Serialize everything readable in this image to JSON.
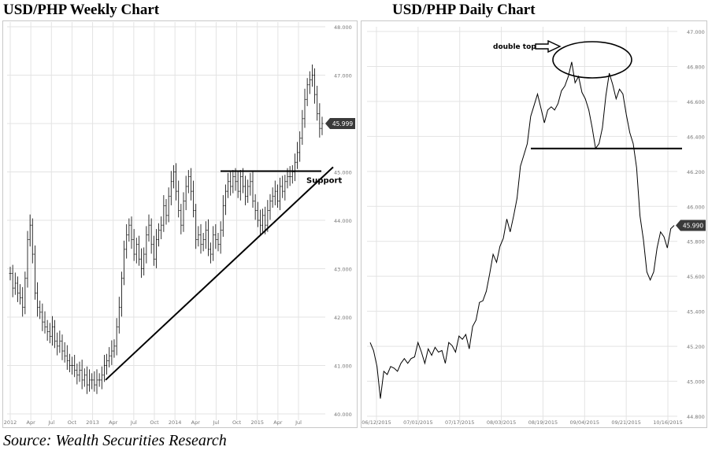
{
  "titles": {
    "weekly": "USD/PHP Weekly Chart",
    "daily": "USD/PHP Daily Chart"
  },
  "source": "Source: Wealth Securities Research",
  "colors": {
    "price": "#000000",
    "grid": "#e3e3e3",
    "axis_text": "#777777",
    "frame": "#c8c8c8"
  },
  "chart_data": [
    {
      "type": "ohlc",
      "title": "USD/PHP Weekly Chart",
      "xlabel": "",
      "ylabel": "",
      "ylim": [
        40.0,
        48.0
      ],
      "yticks": [
        "48.000",
        "47.000",
        "46.000",
        "45.000",
        "44.000",
        "43.000",
        "42.000",
        "41.000",
        "40.000"
      ],
      "xticks": [
        "2012",
        "Apr",
        "Jul",
        "Oct",
        "2013",
        "Apr",
        "Jul",
        "Oct",
        "2014",
        "Apr",
        "Jul",
        "Oct",
        "2015",
        "Apr",
        "Jul"
      ],
      "grid": true,
      "last_price_label": "45.999",
      "annotations": [
        {
          "text": "Support",
          "type": "horizontal_line",
          "y": 45.0,
          "x_from": "2014-08",
          "x_to": "2015-10"
        },
        {
          "type": "trendline",
          "from": [
            "2013-04",
            40.7
          ],
          "to": [
            "2015-10",
            45.1
          ]
        }
      ],
      "series": [
        {
          "values": [
            42.9,
            42.6,
            42.7,
            42.5,
            42.4,
            42.2,
            42.8,
            43.6,
            43.9,
            43.3,
            42.5,
            42.2,
            42.1,
            41.9,
            41.8,
            41.7,
            41.6,
            41.8,
            41.5,
            41.4,
            41.5,
            41.3,
            41.2,
            41.1,
            41.0,
            41.0,
            40.9,
            40.8,
            40.9,
            40.7,
            40.8,
            40.6,
            40.7,
            40.7,
            40.6,
            40.7,
            40.7,
            40.8,
            41.0,
            41.1,
            41.2,
            41.3,
            41.4,
            41.8,
            42.2,
            42.8,
            43.4,
            43.7,
            43.9,
            43.6,
            43.3,
            43.5,
            43.2,
            43.0,
            43.3,
            43.7,
            43.9,
            43.5,
            43.2,
            43.6,
            43.8,
            43.9,
            44.3,
            44.1,
            44.5,
            44.8,
            45.0,
            44.6,
            44.2,
            43.9,
            44.4,
            44.7,
            44.9,
            44.6,
            44.2,
            43.6,
            43.7,
            43.5,
            43.6,
            43.8,
            43.4,
            43.3,
            43.7,
            43.6,
            43.5,
            43.8,
            44.3,
            44.6,
            44.8,
            44.7,
            44.9,
            44.8,
            44.6,
            44.9,
            44.7,
            44.5,
            44.7,
            44.8,
            44.4,
            44.2,
            44.0,
            43.9,
            44.1,
            43.9,
            44.2,
            44.4,
            44.5,
            44.6,
            44.4,
            44.7,
            44.6,
            44.8,
            44.9,
            44.9,
            45.0,
            45.2,
            45.4,
            45.7,
            46.1,
            46.5,
            46.8,
            46.9,
            47.0,
            46.6,
            46.2,
            45.9,
            46.0
          ]
        }
      ]
    },
    {
      "type": "line",
      "title": "USD/PHP Daily Chart",
      "xlabel": "",
      "ylabel": "",
      "ylim": [
        44.8,
        47.2
      ],
      "yticks": [
        "47.000",
        "46.800",
        "46.600",
        "46.400",
        "46.200",
        "46.000",
        "45.800",
        "45.600",
        "45.400",
        "45.200",
        "45.000",
        "44.800"
      ],
      "xticks": [
        "06/12/2015",
        "07/01/2015",
        "07/17/2015",
        "08/03/2015",
        "08/19/2015",
        "09/04/2015",
        "09/21/2015",
        "10/16/2015"
      ],
      "grid": true,
      "last_price_label": "45.990",
      "annotations": [
        {
          "text": "double top",
          "type": "ellipse_callout",
          "x_range": [
            "08/31/2015",
            "09/27/2015"
          ],
          "y_range": [
            46.85,
            47.1
          ]
        },
        {
          "type": "horizontal_line",
          "y": 46.47,
          "x_from": "08/13/2015",
          "x_to": "10/20/2015"
        }
      ],
      "series": [
        {
          "values": [
            45.26,
            45.21,
            45.11,
            44.91,
            45.08,
            45.06,
            45.11,
            45.1,
            45.08,
            45.13,
            45.16,
            45.13,
            45.16,
            45.17,
            45.26,
            45.2,
            45.13,
            45.22,
            45.18,
            45.23,
            45.2,
            45.21,
            45.13,
            45.26,
            45.24,
            45.2,
            45.3,
            45.28,
            45.31,
            45.22,
            45.36,
            45.4,
            45.51,
            45.52,
            45.58,
            45.69,
            45.81,
            45.76,
            45.86,
            45.91,
            46.03,
            45.95,
            46.05,
            46.16,
            46.36,
            46.43,
            46.5,
            46.67,
            46.74,
            46.81,
            46.72,
            46.63,
            46.71,
            46.73,
            46.71,
            46.75,
            46.83,
            46.86,
            46.92,
            47.01,
            46.88,
            46.92,
            46.82,
            46.78,
            46.71,
            46.6,
            46.47,
            46.5,
            46.6,
            46.8,
            46.94,
            46.87,
            46.78,
            46.84,
            46.81,
            46.68,
            46.57,
            46.5,
            46.35,
            46.05,
            45.9,
            45.7,
            45.65,
            45.7,
            45.85,
            45.95,
            45.92,
            45.85,
            45.97,
            45.99
          ]
        }
      ]
    }
  ]
}
